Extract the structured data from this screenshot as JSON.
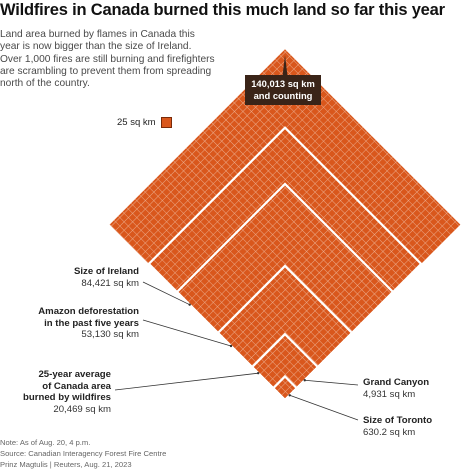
{
  "title": "Wildfires in Canada burned this much land so far this year",
  "subtitle": "Land area burned by flames in Canada this year is now bigger than the size of Ireland. Over 1,000 fires are still burning and firefighters are scrambling to prevent them from spreading north of the country.",
  "legend": {
    "label": "25 sq km",
    "color": "#d9571c"
  },
  "colors": {
    "fire": "#d9571c",
    "grid": "#fbeee4",
    "separator": "#ffffff",
    "highlight_bg": "#3a2418"
  },
  "chart_data": {
    "type": "nested-area-diamond",
    "unit": "sq km",
    "cell_area_sq_km": 25,
    "items": [
      {
        "label": "",
        "value": 140013,
        "value_text": "140,013 sq km",
        "value_suffix": "and counting",
        "highlight": true
      },
      {
        "label": "Size of Ireland",
        "value": 84421,
        "value_text": "84,421 sq km"
      },
      {
        "label": "Amazon deforestation in the past five years",
        "label_lines": "Amazon deforestation\nin the past five years",
        "value": 53130,
        "value_text": "53,130 sq km"
      },
      {
        "label": "25-year average of Canada area burned by wildfires",
        "label_lines": "25-year average\nof Canada area\nburned by wildfires",
        "value": 20469,
        "value_text": "20,469 sq km"
      },
      {
        "label": "Grand Canyon",
        "value": 4931,
        "value_text": "4,931 sq km"
      },
      {
        "label": "Size of Toronto",
        "value": 630.2,
        "value_text": "630.2 sq km"
      }
    ]
  },
  "footer": {
    "note": "Note: As of Aug. 20, 4 p.m.",
    "source": "Source: Canadian Interagency Forest Fire Centre",
    "credit": "Prinz Magtulis | Reuters, Aug. 21, 2023"
  }
}
